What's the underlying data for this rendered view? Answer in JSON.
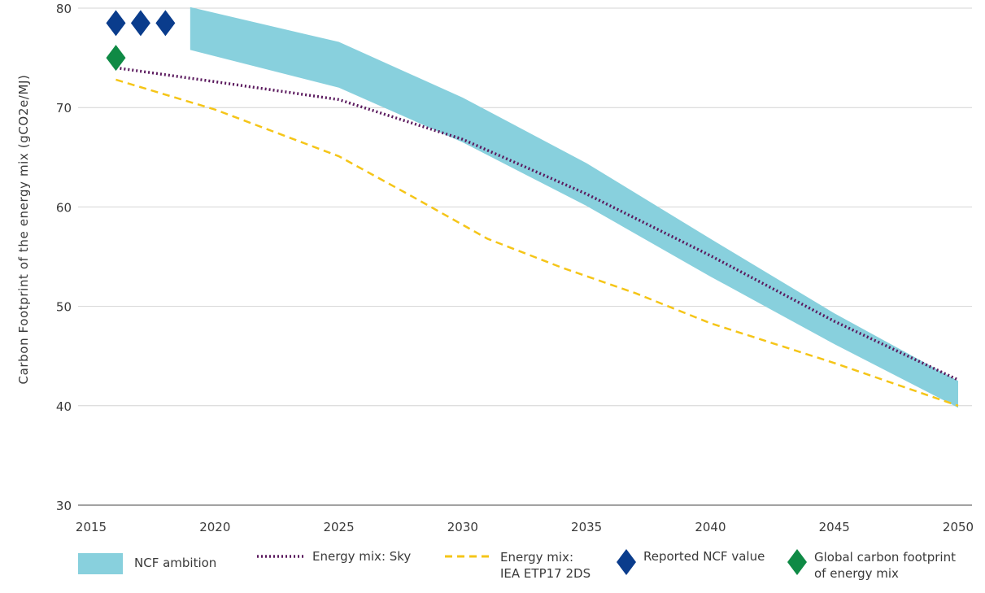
{
  "chart_data": {
    "type": "area",
    "ylabel": "Carbon Footprint of the energy mix (gCO2e/MJ)",
    "xlabel": "",
    "xlim": [
      2015,
      2050
    ],
    "ylim": [
      30,
      80
    ],
    "x_ticks": [
      "2015",
      "2020",
      "2025",
      "2030",
      "2035",
      "2040",
      "2045",
      "2050"
    ],
    "y_ticks": [
      "30",
      "40",
      "50",
      "60",
      "70",
      "80"
    ],
    "grid": "horizontal",
    "legend_position": "bottom",
    "band": {
      "name": "NCF ambition",
      "color": "#88d0dd",
      "x": [
        2019,
        2025,
        2030,
        2035,
        2040,
        2045,
        2050
      ],
      "upper": [
        80.1,
        76.6,
        71.0,
        64.4,
        56.8,
        49.3,
        42.5
      ],
      "lower": [
        75.8,
        72.0,
        66.5,
        60.1,
        53.0,
        46.2,
        39.8
      ]
    },
    "series": [
      {
        "name": "Energy mix: Sky",
        "style": "dotted",
        "color": "#5b1a5e",
        "x": [
          2016,
          2020,
          2025,
          2030,
          2035,
          2040,
          2045,
          2050
        ],
        "values": [
          74.0,
          72.6,
          70.8,
          66.8,
          61.3,
          55.1,
          48.5,
          42.6
        ]
      },
      {
        "name": "Energy mix: IEA ETP17 2DS",
        "style": "dashed",
        "color": "#f5c518",
        "x": [
          2016,
          2020,
          2025,
          2028,
          2031,
          2034,
          2037,
          2040,
          2045,
          2050
        ],
        "values": [
          72.8,
          69.8,
          65.1,
          61.0,
          56.8,
          53.9,
          51.3,
          48.3,
          44.3,
          40.0
        ]
      }
    ],
    "markers": [
      {
        "name": "Reported NCF value",
        "shape": "diamond",
        "color": "#0a3c8c",
        "points": [
          {
            "x": 2016,
            "y": 78.5
          },
          {
            "x": 2017,
            "y": 78.5
          },
          {
            "x": 2018,
            "y": 78.5
          }
        ]
      },
      {
        "name": "Global carbon footprint of energy mix",
        "shape": "diamond",
        "color": "#0f8a45",
        "points": [
          {
            "x": 2016,
            "y": 75.0
          }
        ]
      }
    ],
    "legend": [
      {
        "key": "band",
        "label": "NCF ambition"
      },
      {
        "key": "sky",
        "label": "Energy mix: Sky"
      },
      {
        "key": "iea",
        "label": "Energy mix:\nIEA ETP17 2DS"
      },
      {
        "key": "reported",
        "label": "Reported NCF value"
      },
      {
        "key": "global",
        "label": "Global carbon footprint\nof energy mix"
      }
    ]
  }
}
